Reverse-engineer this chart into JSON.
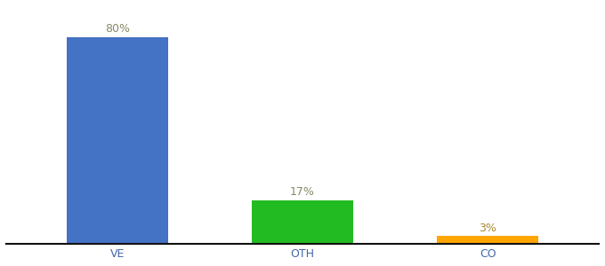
{
  "categories": [
    "VE",
    "OTH",
    "CO"
  ],
  "values": [
    80,
    17,
    3
  ],
  "bar_colors": [
    "#4472c4",
    "#22bb22",
    "#ffa500"
  ],
  "labels": [
    "80%",
    "17%",
    "3%"
  ],
  "ylim": [
    0,
    92
  ],
  "background_color": "#ffffff",
  "label_color_ve": "#888866",
  "label_color_oth": "#888866",
  "label_color_co": "#aa8833",
  "bar_width": 0.55,
  "tick_fontsize": 9,
  "label_fontsize": 9,
  "tick_color": "#4466aa"
}
